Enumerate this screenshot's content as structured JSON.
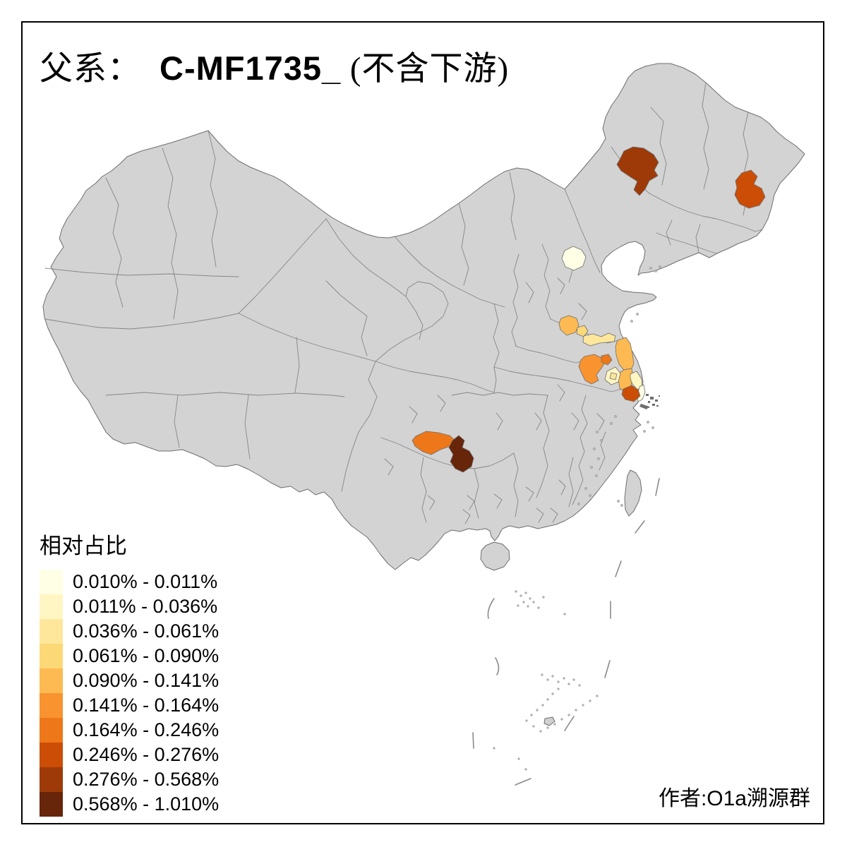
{
  "title": {
    "prefix": "父系：",
    "code": "C-MF1735_",
    "suffix": " (不含下游)"
  },
  "author_credit": "作者:O1a溯源群",
  "legend": {
    "title": "相对占比",
    "classes": [
      {
        "label": "0.010% - 0.011%",
        "color": "#FFFFE5"
      },
      {
        "label": "0.011% - 0.036%",
        "color": "#FFF6C3"
      },
      {
        "label": "0.036% - 0.061%",
        "color": "#FEE79B"
      },
      {
        "label": "0.061% - 0.090%",
        "color": "#FDD877"
      },
      {
        "label": "0.090% - 0.141%",
        "color": "#FDBA52"
      },
      {
        "label": "0.141% - 0.164%",
        "color": "#F8932F"
      },
      {
        "label": "0.164% - 0.246%",
        "color": "#EE7819"
      },
      {
        "label": "0.246% - 0.276%",
        "color": "#CB4D06"
      },
      {
        "label": "0.276% - 0.568%",
        "color": "#9E3A08"
      },
      {
        "label": "0.568% - 1.010%",
        "color": "#67250A"
      }
    ]
  },
  "map": {
    "land_fill": "#D3D3D3",
    "border_color": "#6E6E6E",
    "sea_color": "#FFFFFF",
    "frame_color": "#000000",
    "regions": [
      {
        "id": "northeast-west",
        "class_index": 9,
        "bin_label": "0.276% - 0.568%"
      },
      {
        "id": "northeast-east",
        "class_index": 8,
        "bin_label": "0.246% - 0.276%"
      },
      {
        "id": "beijing",
        "class_index": 1,
        "bin_label": "0.010% - 0.011%"
      },
      {
        "id": "shandong-a",
        "class_index": 5,
        "bin_label": "0.090% - 0.141%"
      },
      {
        "id": "shandong-b",
        "class_index": 4,
        "bin_label": "0.061% - 0.090%"
      },
      {
        "id": "shandong-c",
        "class_index": 3,
        "bin_label": "0.036% - 0.061%"
      },
      {
        "id": "jiangsu-coast-a",
        "class_index": 5,
        "bin_label": "0.090% - 0.141%"
      },
      {
        "id": "jiangsu-coast-b",
        "class_index": 5,
        "bin_label": "0.090% - 0.141%"
      },
      {
        "id": "anhui-a",
        "class_index": 6,
        "bin_label": "0.141% - 0.164%"
      },
      {
        "id": "anhui-b",
        "class_index": 7,
        "bin_label": "0.164% - 0.246%"
      },
      {
        "id": "jiangsu-pale",
        "class_index": 2,
        "bin_label": "0.011% - 0.036%"
      },
      {
        "id": "jiangsu-pale-spot",
        "class_index": 3,
        "bin_label": "0.036% - 0.061%"
      },
      {
        "id": "coastal-a",
        "class_index": 2,
        "bin_label": "0.011% - 0.036%"
      },
      {
        "id": "coastal-b",
        "class_index": 1,
        "bin_label": "0.010% - 0.011%"
      },
      {
        "id": "suzhou",
        "class_index": 8,
        "bin_label": "0.246% - 0.276%"
      },
      {
        "id": "sichuan-south",
        "class_index": 7,
        "bin_label": "0.164% - 0.246%"
      },
      {
        "id": "guizhou-west",
        "class_index": 10,
        "bin_label": "0.568% - 1.010%"
      }
    ]
  }
}
